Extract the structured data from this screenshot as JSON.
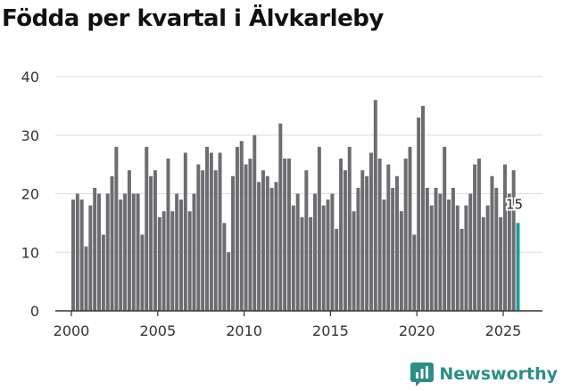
{
  "title": "Födda per kvartal i Älvkarleby",
  "brand": {
    "name": "Newsworthy",
    "color": "#2a8f86",
    "icon": "bar-chart-logo-icon"
  },
  "chart_data": {
    "type": "bar",
    "title": "Födda per kvartal i Älvkarleby",
    "xlabel": "",
    "ylabel": "",
    "ylim": [
      0,
      40
    ],
    "yticks": [
      0,
      10,
      20,
      30,
      40
    ],
    "xticks": [
      2000,
      2005,
      2010,
      2015,
      2020,
      2025
    ],
    "grid": true,
    "bar_color": "#6d6c70",
    "highlight_color": "#1a9e96",
    "x_start": 2000.0,
    "x_step": 0.25,
    "values": [
      19,
      20,
      19,
      11,
      18,
      21,
      20,
      13,
      20,
      23,
      28,
      19,
      20,
      24,
      20,
      20,
      13,
      28,
      23,
      24,
      16,
      17,
      26,
      17,
      20,
      19,
      27,
      17,
      20,
      25,
      24,
      28,
      27,
      24,
      27,
      15,
      10,
      23,
      28,
      29,
      25,
      26,
      30,
      22,
      24,
      23,
      21,
      22,
      32,
      26,
      26,
      18,
      20,
      16,
      24,
      16,
      20,
      28,
      18,
      19,
      20,
      14,
      26,
      24,
      28,
      17,
      21,
      24,
      23,
      27,
      36,
      26,
      19,
      25,
      21,
      23,
      17,
      26,
      28,
      13,
      33,
      35,
      21,
      18,
      21,
      20,
      28,
      19,
      21,
      18,
      14,
      18,
      20,
      25,
      26,
      16,
      18,
      23,
      21,
      16,
      25,
      20,
      24,
      15
    ],
    "highlight_last": true,
    "last_label": "15"
  }
}
